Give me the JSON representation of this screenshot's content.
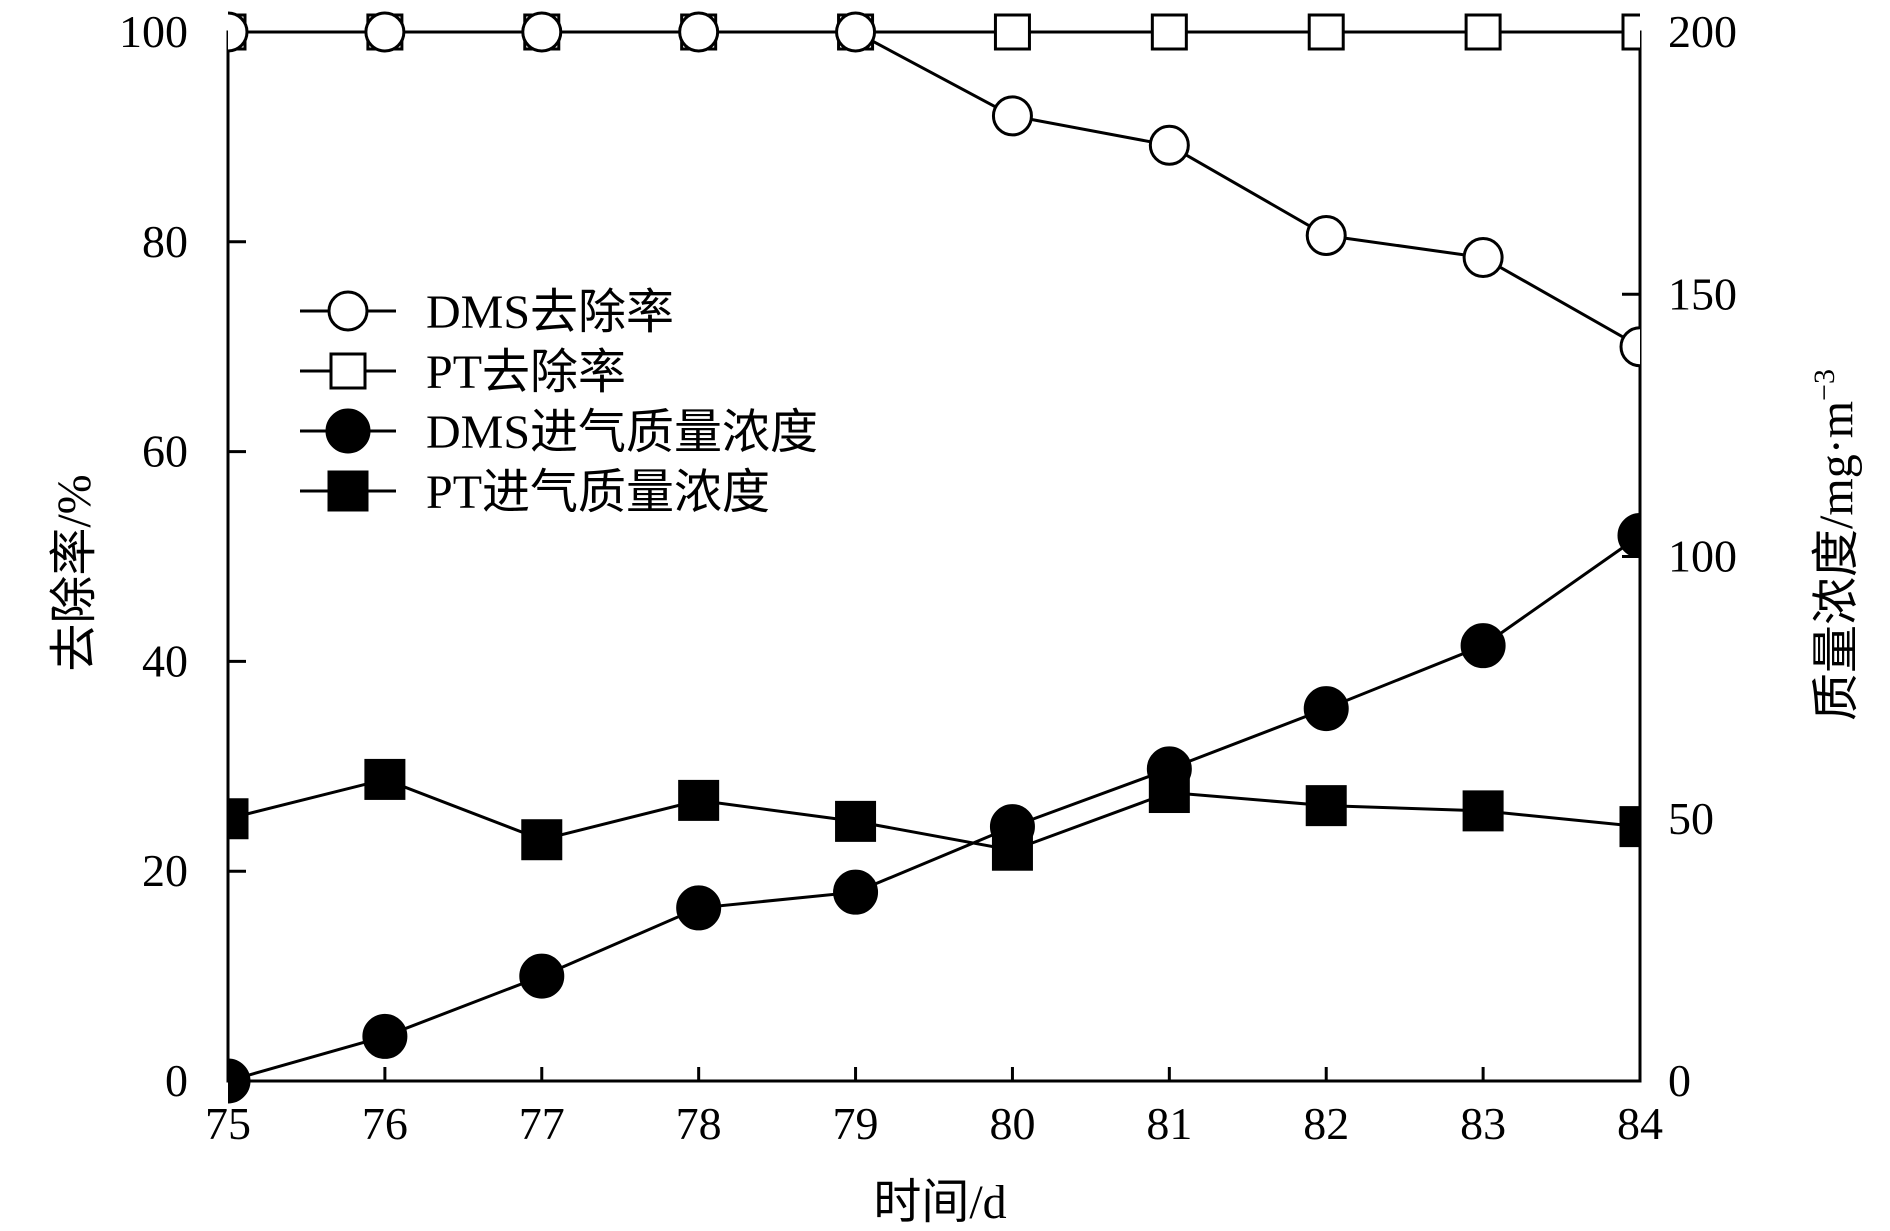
{
  "chart_data": {
    "type": "line",
    "x": [
      75,
      76,
      77,
      78,
      79,
      80,
      81,
      82,
      83,
      84
    ],
    "xlabel": "时间/d",
    "ylabel_left": "去除率/%",
    "ylabel_right": "质量浓度/mg·m",
    "ylabel_right_sup": "−3",
    "xlim": [
      75,
      84
    ],
    "ylim_left": [
      0,
      100
    ],
    "ylim_right": [
      0,
      200
    ],
    "xticks": [
      "75",
      "76",
      "77",
      "78",
      "79",
      "80",
      "81",
      "82",
      "83",
      "84"
    ],
    "yticks_left": [
      "0",
      "20",
      "40",
      "60",
      "80",
      "100"
    ],
    "yticks_right": [
      "0",
      "50",
      "100",
      "150",
      "200"
    ],
    "grid": false,
    "legend_position": "upper-left",
    "series": [
      {
        "name": "DMS去除率",
        "axis": "left",
        "marker": "circle-open",
        "values": [
          100,
          100,
          100,
          100,
          100,
          92,
          89.2,
          80.6,
          78.5,
          70
        ]
      },
      {
        "name": "PT去除率",
        "axis": "left",
        "marker": "square-open",
        "values": [
          100,
          100,
          100,
          100,
          100,
          100,
          100,
          100,
          100,
          100
        ]
      },
      {
        "name": "DMS进气质量浓度",
        "axis": "right",
        "marker": "circle-filled",
        "values": [
          0,
          8.5,
          20,
          33,
          36,
          48.5,
          59.5,
          71,
          83,
          104
        ]
      },
      {
        "name": "PT进气质量浓度",
        "axis": "right",
        "marker": "square-filled",
        "values": [
          50,
          57.5,
          46,
          53.5,
          49.5,
          44,
          55,
          52.5,
          51.5,
          48.5
        ]
      }
    ]
  }
}
